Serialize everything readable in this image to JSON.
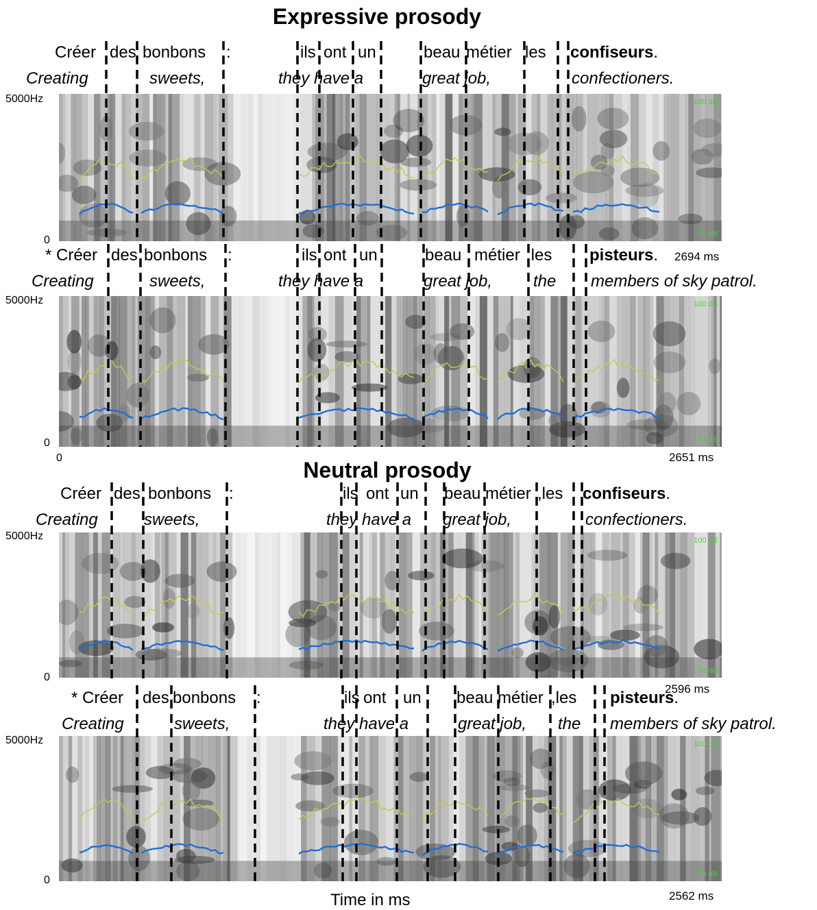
{
  "titles": {
    "expressive": "Expressive prosody",
    "neutral": "Neutral prosody"
  },
  "x_axis_label": "Time in ms",
  "frequency_labels": {
    "top": "5000Hz",
    "bottom": "0"
  },
  "intensity_labels": {
    "top": "100 dB",
    "bottom": "50 dB"
  },
  "time_start_label": "0",
  "colors": {
    "pitch": "#1e6fd6",
    "intensity": "#c8c84a",
    "frame": "#e02020",
    "boundary": "#000000"
  },
  "panels": [
    {
      "group": "expressive",
      "framed": true,
      "duration": "2694 ms",
      "french": {
        "prefix": "",
        "words": [
          "Créer",
          "des",
          "bonbons",
          ":",
          "ils",
          "ont",
          "un",
          "beau",
          "métier",
          "les"
        ],
        "target": "confiseurs",
        "end": "."
      },
      "english": {
        "phrase1": "Creating",
        "phrase2": "sweets,",
        "phrase3": "they have a",
        "phrase4": "great job,",
        "phrase5": "",
        "target": "confectioners."
      }
    },
    {
      "group": "expressive",
      "framed": true,
      "duration": "2651 ms",
      "french": {
        "prefix": "*",
        "words": [
          "Créer",
          "des",
          "bonbons",
          ":",
          "ils",
          "ont",
          "un",
          "beau",
          "métier",
          ",les"
        ],
        "target": "pisteurs",
        "end": "."
      },
      "english": {
        "phrase1": "Creating",
        "phrase2": "sweets,",
        "phrase3": "they have a",
        "phrase4": "great job,",
        "phrase5": "the",
        "target": "members of sky patrol."
      }
    },
    {
      "group": "neutral",
      "framed": false,
      "duration": "2596 ms",
      "french": {
        "prefix": "",
        "words": [
          "Créer",
          "des",
          "bonbons",
          ":",
          "ils",
          "ont",
          "un",
          "beau",
          "métier",
          ",les"
        ],
        "target": "confiseurs",
        "end": "."
      },
      "english": {
        "phrase1": "Creating",
        "phrase2": "sweets,",
        "phrase3": "they have a",
        "phrase4": "great job,",
        "phrase5": "",
        "target": "confectioners."
      }
    },
    {
      "group": "neutral",
      "framed": false,
      "duration": "2562 ms",
      "french": {
        "prefix": "*",
        "words": [
          "Créer",
          "des",
          "bonbons",
          ":",
          "ils",
          "ont",
          "un",
          "beau",
          "métier",
          ",les"
        ],
        "target": "pisteurs",
        "end": "."
      },
      "english": {
        "phrase1": "Creating",
        "phrase2": "sweets,",
        "phrase3": "they have a",
        "phrase4": "great job,",
        "phrase5": "the",
        "target": "members of sky patrol."
      }
    }
  ]
}
